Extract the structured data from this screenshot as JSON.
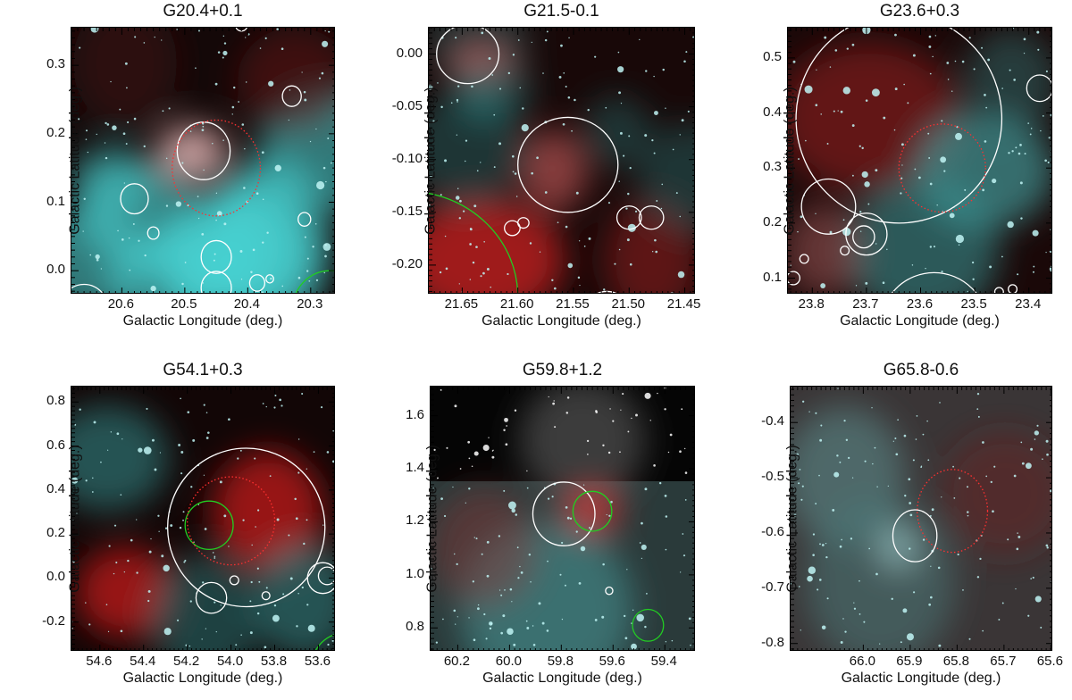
{
  "figure": {
    "panels": [
      {
        "id": "p1",
        "title": "G20.4+0.1",
        "xlabel": "Galactic Longitude (deg.)",
        "ylabel": "Galactic Latitude (deg.)",
        "xlim": [
          20.68,
          20.26
        ],
        "ylim": [
          -0.035,
          0.355
        ],
        "xticks": [
          20.6,
          20.5,
          20.4,
          20.3
        ],
        "yticks": [
          0.0,
          0.1,
          0.2,
          0.3
        ],
        "xtick_labels": [
          "20.6",
          "20.5",
          "20.4",
          "20.3"
        ],
        "ytick_labels": [
          "0.0",
          "0.1",
          "0.2",
          "0.3"
        ],
        "style": "rgb",
        "circles": [
          {
            "l": 20.47,
            "b": 0.175,
            "r": 0.042,
            "color": "white",
            "dashed": false
          },
          {
            "l": 20.45,
            "b": 0.15,
            "r": 0.07,
            "color": "red",
            "dashed": true
          },
          {
            "l": 20.58,
            "b": 0.105,
            "r": 0.022,
            "color": "white",
            "dashed": false
          },
          {
            "l": 20.55,
            "b": 0.055,
            "r": 0.009,
            "color": "white",
            "dashed": false
          },
          {
            "l": 20.45,
            "b": 0.02,
            "r": 0.024,
            "color": "white",
            "dashed": false
          },
          {
            "l": 20.45,
            "b": -0.025,
            "r": 0.024,
            "color": "white",
            "dashed": false
          },
          {
            "l": 20.385,
            "b": -0.018,
            "r": 0.012,
            "color": "white",
            "dashed": false
          },
          {
            "l": 20.365,
            "b": -0.012,
            "r": 0.006,
            "color": "white",
            "dashed": false
          },
          {
            "l": 20.33,
            "b": 0.255,
            "r": 0.015,
            "color": "white",
            "dashed": false
          },
          {
            "l": 20.31,
            "b": 0.075,
            "r": 0.01,
            "color": "white",
            "dashed": false
          },
          {
            "l": 20.41,
            "b": 0.36,
            "r": 0.01,
            "color": "white",
            "dashed": false
          },
          {
            "l": 20.66,
            "b": -0.06,
            "r": 0.04,
            "color": "white",
            "dashed": false
          },
          {
            "l": 20.27,
            "b": -0.06,
            "r": 0.06,
            "color": "green",
            "dashed": false
          }
        ]
      },
      {
        "id": "p2",
        "title": "G21.5-0.1",
        "xlabel": "Galactic Longitude (deg.)",
        "ylabel": "Galactic Latitude (deg.)",
        "xlim": [
          21.68,
          21.44
        ],
        "ylim": [
          -0.228,
          0.025
        ],
        "xticks": [
          21.65,
          21.6,
          21.55,
          21.5,
          21.45
        ],
        "yticks": [
          0.0,
          -0.05,
          -0.1,
          -0.15,
          -0.2
        ],
        "xtick_labels": [
          "21.65",
          "21.60",
          "21.55",
          "21.50",
          "21.45"
        ],
        "ytick_labels": [
          "0.00",
          "-0.05",
          "-0.10",
          "-0.15",
          "-0.20"
        ],
        "style": "rgb",
        "circles": [
          {
            "l": 21.645,
            "b": 0.0,
            "r": 0.028,
            "color": "white",
            "dashed": false
          },
          {
            "l": 21.555,
            "b": -0.105,
            "r": 0.045,
            "color": "white",
            "dashed": false
          },
          {
            "l": 21.605,
            "b": -0.165,
            "r": 0.007,
            "color": "white",
            "dashed": false
          },
          {
            "l": 21.595,
            "b": -0.16,
            "r": 0.005,
            "color": "white",
            "dashed": false
          },
          {
            "l": 21.5,
            "b": -0.155,
            "r": 0.011,
            "color": "white",
            "dashed": false
          },
          {
            "l": 21.48,
            "b": -0.155,
            "r": 0.011,
            "color": "white",
            "dashed": false
          },
          {
            "l": 21.52,
            "b": -0.245,
            "r": 0.02,
            "color": "white",
            "dashed": false
          },
          {
            "l": 21.7,
            "b": -0.23,
            "r": 0.1,
            "color": "green",
            "dashed": false
          }
        ]
      },
      {
        "id": "p3",
        "title": "G23.6+0.3",
        "xlabel": "Galactic Longitude (deg.)",
        "ylabel": "Galactic Latitude (deg.)",
        "xlim": [
          23.845,
          23.355
        ],
        "ylim": [
          0.07,
          0.555
        ],
        "xticks": [
          23.8,
          23.7,
          23.6,
          23.5,
          23.4
        ],
        "yticks": [
          0.1,
          0.2,
          0.3,
          0.4,
          0.5
        ],
        "xtick_labels": [
          "23.8",
          "23.7",
          "23.6",
          "23.5",
          "23.4"
        ],
        "ytick_labels": [
          "0.1",
          "0.2",
          "0.3",
          "0.4",
          "0.5"
        ],
        "style": "rgb",
        "circles": [
          {
            "l": 23.64,
            "b": 0.39,
            "r": 0.19,
            "color": "white",
            "dashed": false
          },
          {
            "l": 23.77,
            "b": 0.23,
            "r": 0.05,
            "color": "white",
            "dashed": false
          },
          {
            "l": 23.7,
            "b": 0.18,
            "r": 0.038,
            "color": "white",
            "dashed": false
          },
          {
            "l": 23.705,
            "b": 0.175,
            "r": 0.02,
            "color": "white",
            "dashed": false
          },
          {
            "l": 23.74,
            "b": 0.15,
            "r": 0.008,
            "color": "white",
            "dashed": false
          },
          {
            "l": 23.815,
            "b": 0.135,
            "r": 0.008,
            "color": "white",
            "dashed": false
          },
          {
            "l": 23.835,
            "b": 0.1,
            "r": 0.012,
            "color": "white",
            "dashed": false
          },
          {
            "l": 23.575,
            "b": 0.01,
            "r": 0.1,
            "color": "white",
            "dashed": false
          },
          {
            "l": 23.455,
            "b": 0.075,
            "r": 0.008,
            "color": "white",
            "dashed": false
          },
          {
            "l": 23.43,
            "b": 0.08,
            "r": 0.008,
            "color": "white",
            "dashed": false
          },
          {
            "l": 23.38,
            "b": 0.445,
            "r": 0.024,
            "color": "white",
            "dashed": false
          },
          {
            "l": 23.56,
            "b": 0.3,
            "r": 0.08,
            "color": "red",
            "dashed": true
          }
        ]
      },
      {
        "id": "p4",
        "title": "G54.1+0.3",
        "xlabel": "Galactic Longitude (deg.)",
        "ylabel": "Galactic Latitude (deg.)",
        "xlim": [
          54.73,
          53.52
        ],
        "ylim": [
          -0.335,
          0.87
        ],
        "xticks": [
          54.6,
          54.4,
          54.2,
          54.0,
          53.8,
          53.6
        ],
        "yticks": [
          -0.2,
          0.0,
          0.2,
          0.4,
          0.6,
          0.8
        ],
        "xtick_labels": [
          "54.6",
          "54.4",
          "54.2",
          "54.0",
          "53.8",
          "53.6"
        ],
        "ytick_labels": [
          "-0.2",
          "0.0",
          "0.2",
          "0.4",
          "0.6",
          "0.8"
        ],
        "style": "rgb",
        "circles": [
          {
            "l": 53.93,
            "b": 0.23,
            "r": 0.36,
            "color": "white",
            "dashed": false
          },
          {
            "l": 54.1,
            "b": 0.24,
            "r": 0.11,
            "color": "green",
            "dashed": false
          },
          {
            "l": 54.0,
            "b": 0.26,
            "r": 0.2,
            "color": "red",
            "dashed": true
          },
          {
            "l": 54.09,
            "b": -0.09,
            "r": 0.07,
            "color": "white",
            "dashed": false
          },
          {
            "l": 53.985,
            "b": -0.01,
            "r": 0.02,
            "color": "white",
            "dashed": false
          },
          {
            "l": 53.84,
            "b": -0.08,
            "r": 0.018,
            "color": "white",
            "dashed": false
          },
          {
            "l": 53.56,
            "b": 0.01,
            "r": 0.04,
            "color": "white",
            "dashed": false
          },
          {
            "l": 53.58,
            "b": 0.0,
            "r": 0.07,
            "color": "white",
            "dashed": false
          },
          {
            "l": 53.48,
            "b": -0.4,
            "r": 0.15,
            "color": "green",
            "dashed": false
          }
        ]
      },
      {
        "id": "p5",
        "title": "G59.8+1.2",
        "xlabel": "Galactic Longitude (deg.)",
        "ylabel": "Galactic Latitude (deg.)",
        "xlim": [
          60.305,
          59.28
        ],
        "ylim": [
          0.71,
          1.71
        ],
        "xticks": [
          60.2,
          60.0,
          59.8,
          59.6,
          59.4
        ],
        "yticks": [
          0.8,
          1.0,
          1.2,
          1.4,
          1.6
        ],
        "xtick_labels": [
          "60.2",
          "60.0",
          "59.8",
          "59.6",
          "59.4"
        ],
        "ytick_labels": [
          "0.8",
          "1.0",
          "1.2",
          "1.4",
          "1.6"
        ],
        "style": "mixed",
        "circles": [
          {
            "l": 59.79,
            "b": 1.23,
            "r": 0.12,
            "color": "white",
            "dashed": false
          },
          {
            "l": 59.68,
            "b": 1.24,
            "r": 0.075,
            "color": "green",
            "dashed": false
          },
          {
            "l": 59.465,
            "b": 0.81,
            "r": 0.06,
            "color": "green",
            "dashed": false
          },
          {
            "l": 59.615,
            "b": 0.94,
            "r": 0.014,
            "color": "white",
            "dashed": false
          }
        ]
      },
      {
        "id": "p6",
        "title": "G65.8-0.6",
        "xlabel": "Galactic Longitude (deg.)",
        "ylabel": "Galactic Latitude (deg.)",
        "xlim": [
          66.155,
          65.595
        ],
        "ylim": [
          -0.815,
          -0.335
        ],
        "xticks": [
          66.0,
          65.9,
          65.8,
          65.7,
          65.6
        ],
        "yticks": [
          -0.8,
          -0.7,
          -0.6,
          -0.5,
          -0.4
        ],
        "xtick_labels": [
          "66.0",
          "65.9",
          "65.8",
          "65.7",
          "65.6"
        ],
        "ytick_labels": [
          "-0.8",
          "-0.7",
          "-0.6",
          "-0.5",
          "-0.4"
        ],
        "style": "rgb",
        "circles": [
          {
            "l": 65.81,
            "b": -0.56,
            "r": 0.075,
            "color": "red",
            "dashed": true
          },
          {
            "l": 65.89,
            "b": -0.605,
            "r": 0.047,
            "color": "white",
            "dashed": false
          }
        ]
      }
    ]
  }
}
